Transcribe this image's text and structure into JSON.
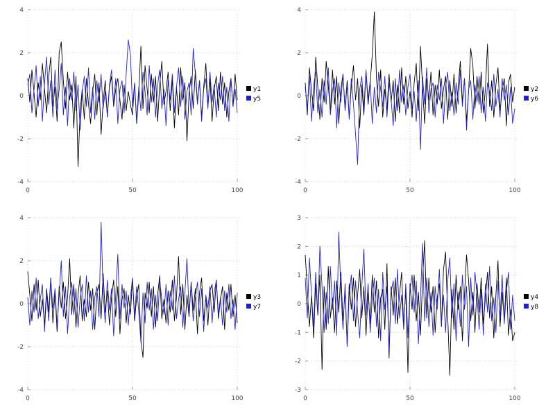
{
  "page": {
    "background": "#ffffff",
    "grid_color": "#cccccc",
    "tick_color": "#444444"
  },
  "chart_data": [
    {
      "type": "line",
      "title": "",
      "xlabel": "",
      "ylabel": "",
      "xticks": [
        0,
        50,
        100
      ],
      "yticks": [
        -4,
        -2,
        0,
        2,
        4
      ],
      "xlim": [
        0,
        102
      ],
      "ylim": [
        -4,
        4
      ],
      "grid": true,
      "legend_position": "right",
      "series": [
        {
          "name": "y1",
          "color": "#000000",
          "values": [
            0.8,
            -0.3,
            1.2,
            0.1,
            -1.0,
            0.6,
            -0.2,
            1.5,
            0.3,
            -0.8,
            0.9,
            1.8,
            -0.5,
            0.4,
            -1.2,
            2.0,
            2.5,
            0.7,
            -0.6,
            1.1,
            -0.2,
            0.5,
            -1.5,
            0.9,
            -3.3,
            -0.7,
            0.3,
            -1.1,
            0.8,
            -0.4,
            -1.3,
            0.2,
            1.0,
            -0.9,
            0.6,
            -1.8,
            -0.3,
            0.7,
            -1.0,
            0.4,
            0.9,
            -0.5,
            0.3,
            0.8,
            -0.2,
            -1.1,
            0.5,
            -0.7,
            0.2,
            -0.4,
            -0.9,
            0.6,
            -1.3,
            0.1,
            2.3,
            -0.6,
            1.4,
            0.3,
            -0.8,
            1.0,
            -0.3,
            0.9,
            -1.2,
            0.5,
            1.6,
            -0.4,
            0.2,
            1.1,
            -0.7,
            0.8,
            -1.5,
            0.4,
            -0.9,
            1.3,
            -0.2,
            0.6,
            -2.1,
            0.1,
            0.9,
            -0.6,
            1.2,
            -0.3,
            0.7,
            -1.0,
            0.4,
            1.5,
            -0.5,
            0.8,
            -1.2,
            0.3,
            0.9,
            -0.7,
            1.1,
            -0.4,
            0.6,
            -1.0,
            0.2,
            0.8,
            -0.5,
            1.0,
            -0.2
          ]
        },
        {
          "name": "y5",
          "color": "#2121cc",
          "values": [
            0.5,
            1.0,
            -0.8,
            0.3,
            1.4,
            -0.5,
            0.9,
            -1.2,
            0.6,
            1.8,
            -0.4,
            0.7,
            -1.0,
            1.2,
            -0.6,
            0.3,
            1.5,
            -0.9,
            0.4,
            -1.4,
            0.8,
            -0.2,
            1.1,
            -0.7,
            0.5,
            -1.6,
            0.2,
            0.9,
            -0.5,
            1.3,
            -0.8,
            0.4,
            -1.1,
            0.7,
            -0.3,
            1.0,
            -0.6,
            0.2,
            -0.9,
            0.5,
            1.2,
            -0.4,
            0.8,
            -1.3,
            0.3,
            0.7,
            -0.8,
            1.0,
            2.6,
            1.9,
            -0.5,
            0.6,
            -1.2,
            0.4,
            -0.7,
            1.1,
            0.2,
            -0.9,
            1.4,
            -0.3,
            0.8,
            -1.0,
            0.5,
            1.2,
            -0.6,
            0.3,
            -1.4,
            0.7,
            -0.2,
            1.0,
            -0.8,
            0.4,
            1.3,
            -0.5,
            0.9,
            -1.1,
            0.2,
            0.6,
            -0.9,
            2.2,
            1.0,
            -0.4,
            0.7,
            -1.2,
            0.3,
            0.8,
            -0.6,
            1.1,
            -0.3,
            0.5,
            -1.0,
            0.6,
            -0.2,
            0.9,
            -0.7,
            0.4,
            -1.2,
            0.8,
            -0.5,
            0.3,
            -0.8
          ]
        }
      ]
    },
    {
      "type": "line",
      "title": "",
      "xlabel": "",
      "ylabel": "",
      "xticks": [
        0,
        50,
        100
      ],
      "yticks": [
        -4,
        -2,
        0,
        2,
        4
      ],
      "xlim": [
        0,
        102
      ],
      "ylim": [
        -4,
        4
      ],
      "grid": true,
      "legend_position": "right",
      "series": [
        {
          "name": "y2",
          "color": "#000000",
          "values": [
            0.6,
            -0.9,
            1.3,
            0.2,
            -0.7,
            1.8,
            0.4,
            -1.1,
            0.8,
            -0.3,
            1.6,
            0.5,
            -0.8,
            1.2,
            -0.4,
            0.9,
            -1.3,
            0.3,
            1.0,
            -0.6,
            0.7,
            -1.0,
            0.4,
            1.4,
            -0.2,
            0.8,
            -1.5,
            0.5,
            -0.9,
            1.1,
            -0.4,
            0.6,
            1.9,
            3.9,
            0.8,
            -0.5,
            1.2,
            -1.0,
            0.3,
            -0.7,
            1.0,
            -0.3,
            0.7,
            -1.2,
            0.5,
            -0.8,
            1.3,
            -0.4,
            0.9,
            -0.6,
            0.2,
            -1.0,
            0.6,
            1.5,
            -0.7,
            2.3,
            0.4,
            -1.3,
            0.8,
            -0.2,
            1.1,
            -0.9,
            0.5,
            -0.4,
            1.2,
            -0.6,
            0.3,
            0.9,
            -1.1,
            0.7,
            -0.5,
            1.0,
            -0.8,
            0.4,
            1.6,
            -0.3,
            0.8,
            -1.2,
            0.2,
            2.2,
            1.4,
            -0.6,
            0.9,
            -0.4,
            1.1,
            -0.8,
            0.3,
            2.4,
            -0.5,
            0.7,
            -1.0,
            0.5,
            1.3,
            -0.7,
            0.2,
            0.8,
            -1.4,
            0.6,
            1.0,
            -0.3,
            0.4
          ]
        },
        {
          "name": "y6",
          "color": "#2121cc",
          "values": [
            0.4,
            -0.6,
            0.9,
            -1.2,
            0.5,
            1.1,
            -0.8,
            0.3,
            -1.0,
            0.7,
            -0.4,
            1.3,
            -0.9,
            0.2,
            0.8,
            -1.5,
            0.6,
            -0.3,
            1.0,
            -0.7,
            0.5,
            -1.1,
            0.8,
            -0.4,
            -1.8,
            -3.2,
            0.3,
            0.9,
            -0.6,
            1.2,
            -0.2,
            0.7,
            -1.3,
            0.4,
            -0.8,
            1.1,
            0.3,
            -0.5,
            0.9,
            -1.0,
            0.6,
            -0.2,
            -1.4,
            0.8,
            -0.7,
            1.2,
            -0.3,
            0.5,
            -0.9,
            0.4,
            1.0,
            -0.6,
            0.2,
            -1.2,
            0.7,
            -2.5,
            0.9,
            -0.4,
            1.3,
            -0.8,
            0.3,
            0.6,
            -1.0,
            0.5,
            -0.2,
            0.8,
            -1.3,
            0.4,
            1.1,
            -0.7,
            0.2,
            -0.9,
            0.6,
            -0.4,
            1.2,
            -0.5,
            0.8,
            -1.6,
            0.3,
            0.7,
            -1.1,
            0.5,
            -0.3,
            0.9,
            -0.8,
            0.4,
            -1.2,
            0.6,
            0.2,
            -0.7,
            1.0,
            -0.5,
            0.3,
            -1.0,
            0.8,
            -0.2,
            0.5,
            -0.9,
            0.4,
            -1.3,
            -0.6
          ]
        }
      ]
    },
    {
      "type": "line",
      "title": "",
      "xlabel": "",
      "ylabel": "",
      "xticks": [
        0,
        50,
        100
      ],
      "yticks": [
        -4,
        -2,
        0,
        2,
        4
      ],
      "xlim": [
        0,
        102
      ],
      "ylim": [
        -4,
        4
      ],
      "grid": true,
      "legend_position": "right",
      "series": [
        {
          "name": "y3",
          "color": "#000000",
          "values": [
            1.5,
            0.4,
            -0.8,
            0.9,
            -0.3,
            1.1,
            -0.6,
            0.2,
            -1.0,
            0.7,
            -0.4,
            1.2,
            -0.9,
            0.5,
            -1.3,
            0.8,
            -0.2,
            1.0,
            -0.7,
            0.3,
            2.1,
            -0.5,
            0.9,
            -1.1,
            0.4,
            1.3,
            -0.8,
            0.2,
            -0.6,
            1.0,
            -0.3,
            0.7,
            -1.2,
            0.5,
            0.9,
            -0.7,
            1.4,
            -0.4,
            0.6,
            -1.0,
            0.3,
            1.1,
            -0.6,
            0.8,
            -1.4,
            0.2,
            0.7,
            -0.9,
            0.4,
            -0.5,
            1.2,
            -0.8,
            0.3,
            0.9,
            -1.7,
            -2.5,
            0.5,
            -0.2,
            1.0,
            -0.6,
            0.8,
            -1.1,
            0.4,
            1.3,
            -0.7,
            0.2,
            -0.9,
            0.6,
            -0.4,
            1.1,
            -0.8,
            0.3,
            2.2,
            -0.5,
            0.9,
            -1.2,
            0.4,
            -0.6,
            1.0,
            -0.3,
            0.7,
            -1.4,
            0.5,
            1.2,
            -0.8,
            0.3,
            -1.0,
            0.6,
            0.9,
            -0.4,
            1.1,
            -0.7,
            0.2,
            0.8,
            -1.2,
            0.5,
            -0.3,
            0.9,
            -0.6,
            0.4,
            -0.9
          ]
        },
        {
          "name": "y7",
          "color": "#2121cc",
          "values": [
            0.3,
            -1.0,
            0.6,
            -0.4,
            1.2,
            -0.7,
            0.2,
            0.9,
            -1.3,
            0.5,
            -0.8,
            1.1,
            -0.2,
            0.7,
            -1.0,
            0.4,
            2.0,
            -0.6,
            0.8,
            -1.4,
            0.3,
            1.0,
            -0.5,
            0.7,
            -1.1,
            0.2,
            0.9,
            -0.8,
            1.3,
            -0.4,
            0.6,
            -1.2,
            0.3,
            0.8,
            -0.6,
            3.8,
            0.5,
            -0.9,
            1.1,
            -0.3,
            0.7,
            -1.5,
            0.4,
            2.3,
            -0.7,
            0.9,
            -0.2,
            0.6,
            -1.0,
            0.3,
            1.2,
            -0.6,
            0.8,
            -0.4,
            -1.8,
            0.5,
            -0.9,
            1.0,
            -0.3,
            0.7,
            -1.2,
            0.4,
            -0.8,
            1.1,
            0.2,
            -0.5,
            0.9,
            -1.0,
            0.6,
            -0.3,
            1.3,
            -0.7,
            0.2,
            0.8,
            -1.1,
            0.5,
            2.1,
            -0.4,
            0.9,
            -0.8,
            0.3,
            1.0,
            -0.6,
            0.7,
            -1.3,
            0.4,
            -0.2,
            0.8,
            -0.9,
            0.5,
            1.1,
            -0.5,
            0.3,
            -1.0,
            0.6,
            -0.4,
            0.9,
            -0.7,
            0.2,
            -1.2,
            0.5
          ]
        }
      ]
    },
    {
      "type": "line",
      "title": "",
      "xlabel": "",
      "ylabel": "",
      "xticks": [
        0,
        50,
        100
      ],
      "yticks": [
        -3,
        -2,
        -1,
        0,
        1,
        2,
        3
      ],
      "xlim": [
        0,
        102
      ],
      "ylim": [
        -3,
        3
      ],
      "grid": true,
      "legend_position": "right",
      "series": [
        {
          "name": "y4",
          "color": "#000000",
          "values": [
            1.7,
            0.5,
            -0.8,
            0.3,
            -1.2,
            0.7,
            -0.4,
            1.0,
            -2.3,
            0.6,
            -0.9,
            1.3,
            -0.5,
            0.2,
            -1.0,
            0.8,
            -0.3,
            1.1,
            -0.6,
            0.4,
            -1.4,
            0.7,
            -0.2,
            0.9,
            -0.8,
            0.3,
            1.2,
            -0.5,
            0.6,
            -1.1,
            0.4,
            -0.7,
            1.0,
            -0.3,
            0.8,
            -1.2,
            0.2,
            0.5,
            -0.9,
            1.4,
            -1.9,
            0.6,
            -0.4,
            0.9,
            -0.7,
            0.3,
            1.1,
            -0.8,
            0.5,
            -2.4,
            0.7,
            -0.2,
            1.0,
            -0.6,
            0.4,
            -1.1,
            0.8,
            2.2,
            -0.5,
            0.9,
            -0.3,
            0.6,
            -1.0,
            0.2,
            0.7,
            -0.8,
            1.2,
            1.8,
            -0.4,
            -2.5,
            0.5,
            -0.9,
            1.0,
            -0.2,
            0.6,
            -1.3,
            0.3,
            1.7,
            0.8,
            -0.6,
            0.4,
            -1.0,
            0.7,
            -0.3,
            0.9,
            -0.7,
            0.2,
            1.1,
            -0.5,
            0.6,
            -1.2,
            0.3,
            1.5,
            -0.8,
            0.4,
            -0.6,
            0.9,
            -1.1,
            -0.2,
            -1.3,
            -1.0
          ]
        },
        {
          "name": "y8",
          "color": "#2121cc",
          "values": [
            0.9,
            -0.5,
            1.6,
            0.3,
            -0.8,
            1.1,
            -0.4,
            2.0,
            0.6,
            -1.0,
            0.4,
            -0.7,
            1.3,
            -0.2,
            0.8,
            -1.1,
            2.5,
            0.5,
            -0.9,
            0.7,
            -1.5,
            0.3,
            1.0,
            -0.6,
            0.8,
            -0.3,
            -1.2,
            0.6,
            1.9,
            -0.4,
            0.7,
            -1.0,
            0.2,
            0.9,
            -0.8,
            0.5,
            -1.3,
            1.1,
            -0.2,
            0.6,
            -1.6,
            0.4,
            0.8,
            -0.7,
            1.2,
            -0.5,
            0.3,
            -0.9,
            0.7,
            -1.2,
            0.5,
            1.0,
            -0.3,
            0.8,
            -1.4,
            0.2,
            2.1,
            -0.6,
            0.9,
            -0.8,
            0.4,
            -1.1,
            0.6,
            -0.2,
            1.2,
            -0.7,
            0.3,
            -1.0,
            0.8,
            1.6,
            -0.5,
            0.7,
            -1.3,
            0.4,
            -0.8,
            1.0,
            -0.2,
            0.6,
            -1.5,
            0.9,
            -0.4,
            1.1,
            0.3,
            -0.9,
            0.5,
            -1.1,
            0.7,
            -0.3,
            1.3,
            -0.6,
            0.2,
            -1.0,
            0.8,
            -0.5,
            1.0,
            -0.7,
            0.4,
            1.1,
            -0.9,
            0.3,
            -0.6
          ]
        }
      ]
    }
  ]
}
